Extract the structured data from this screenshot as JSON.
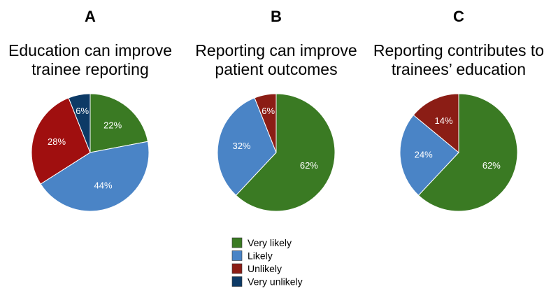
{
  "colors": {
    "very_likely": "#3A7A23",
    "likely": "#4A84C6",
    "unlikely": "#8B1D15",
    "very_unlikely": "#0D3A66",
    "panel_a_unlikely": "#A00F0F",
    "label_text": "#FFFFFF",
    "background": "#FFFFFF",
    "text": "#000000"
  },
  "legend": {
    "items": [
      {
        "key": "very_likely",
        "label": "Very likely"
      },
      {
        "key": "likely",
        "label": "Likely"
      },
      {
        "key": "unlikely",
        "label": "Unlikely"
      },
      {
        "key": "very_unlikely",
        "label": "Very unlikely"
      }
    ]
  },
  "chart_data": [
    {
      "type": "pie",
      "panel": "A",
      "title_lines": [
        "Education can improve",
        "trainee reporting"
      ],
      "slices": [
        {
          "key": "very_likely",
          "label": "Very likely",
          "value": 22,
          "text": "22%"
        },
        {
          "key": "likely",
          "label": "Likely",
          "value": 44,
          "text": "44%"
        },
        {
          "key": "unlikely",
          "label": "Unlikely",
          "value": 28,
          "text": "28%"
        },
        {
          "key": "very_unlikely",
          "label": "Very unlikely",
          "value": 6,
          "text": "6%"
        }
      ]
    },
    {
      "type": "pie",
      "panel": "B",
      "title_lines": [
        "Reporting can improve",
        "patient outcomes"
      ],
      "slices": [
        {
          "key": "very_likely",
          "label": "Very likely",
          "value": 62,
          "text": "62%"
        },
        {
          "key": "likely",
          "label": "Likely",
          "value": 32,
          "text": "32%"
        },
        {
          "key": "unlikely",
          "label": "Unlikely",
          "value": 6,
          "text": "6%"
        }
      ]
    },
    {
      "type": "pie",
      "panel": "C",
      "title_lines": [
        "Reporting contributes to",
        "trainees’ education"
      ],
      "slices": [
        {
          "key": "very_likely",
          "label": "Very likely",
          "value": 62,
          "text": "62%"
        },
        {
          "key": "likely",
          "label": "Likely",
          "value": 24,
          "text": "24%"
        },
        {
          "key": "unlikely",
          "label": "Unlikely",
          "value": 14,
          "text": "14%"
        }
      ]
    }
  ]
}
